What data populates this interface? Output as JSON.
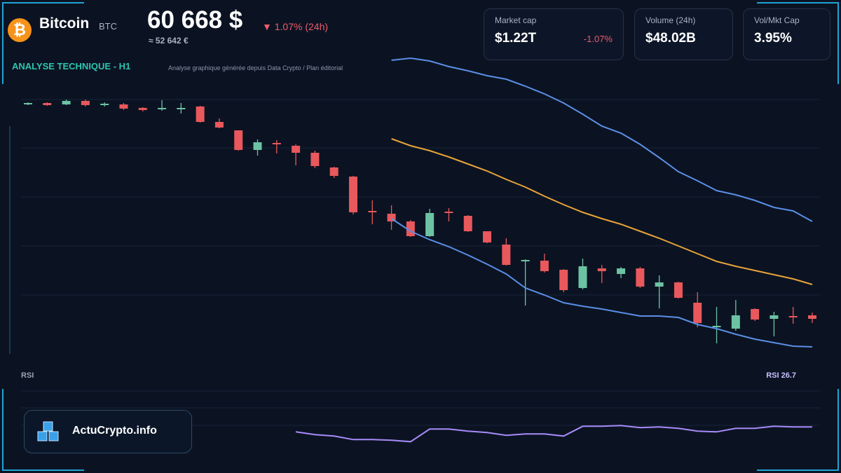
{
  "header": {
    "name": "Bitcoin",
    "symbol": "BTC",
    "price": "60 668 $",
    "change": "▼ 1.07% (24h)",
    "price_eur": "≈ 52 642 €"
  },
  "cards": [
    {
      "label": "Market cap",
      "value": "$1.22T",
      "change": "-1.07%"
    },
    {
      "label": "Volume (24h)",
      "value": "$48.02B"
    },
    {
      "label": "Vol/Mkt Cap",
      "value": "3.95%"
    }
  ],
  "brand": "ActuCrypto.info",
  "chart_data": [
    {
      "type": "candlestick",
      "title": "ANALYSE TECHNIQUE - H1",
      "subtitle": "Analyse graphique générée depuis Data Crypto / Plan éditorial",
      "categories": [
        null,
        null,
        null,
        null,
        null,
        null,
        null,
        null,
        null,
        null,
        null,
        null,
        null,
        null,
        null,
        null,
        null,
        null,
        null,
        null,
        null,
        null,
        null,
        null,
        null,
        null,
        null,
        null,
        null,
        null,
        null,
        null,
        null,
        null,
        null,
        null,
        null,
        null,
        null,
        null,
        null,
        null
      ],
      "open": [
        66740,
        66760,
        66720,
        66820,
        66720,
        66720,
        66620,
        66600,
        66600,
        66660,
        66220,
        65980,
        65420,
        65620,
        65540,
        65340,
        64920,
        64660,
        63680,
        63600,
        63380,
        62960,
        63660,
        63540,
        63100,
        62720,
        62260,
        62260,
        62000,
        61480,
        62040,
        61880,
        62040,
        61520,
        61640,
        61060,
        60380,
        60320,
        60880,
        60600,
        60680,
        60700
      ],
      "high": [
        66780,
        66780,
        66860,
        66860,
        66780,
        66760,
        66640,
        66840,
        66760,
        66680,
        66320,
        65980,
        65720,
        65700,
        65580,
        65400,
        64940,
        64680,
        63980,
        63840,
        63420,
        63740,
        63760,
        63560,
        63100,
        62900,
        62300,
        62460,
        62020,
        62320,
        62140,
        62080,
        62080,
        61840,
        61660,
        61360,
        60940,
        61140,
        60900,
        60800,
        60940,
        60780
      ],
      "low": [
        66700,
        66680,
        66700,
        66660,
        66660,
        66560,
        66520,
        66540,
        66460,
        66200,
        66040,
        65400,
        65260,
        65320,
        64980,
        64900,
        64620,
        63580,
        63300,
        63140,
        62940,
        62940,
        63380,
        63080,
        62760,
        62120,
        60980,
        61920,
        61360,
        61440,
        61620,
        61760,
        61480,
        60900,
        61180,
        60360,
        59900,
        60260,
        60540,
        60100,
        60460,
        60480
      ],
      "close": [
        66760,
        66700,
        66820,
        66700,
        66740,
        66600,
        66560,
        66620,
        66620,
        66220,
        66060,
        65420,
        65640,
        65600,
        65340,
        64960,
        64680,
        63640,
        63640,
        63380,
        62960,
        63620,
        63620,
        63100,
        62780,
        62140,
        62280,
        61960,
        61420,
        62100,
        61960,
        62040,
        61520,
        61640,
        61200,
        60480,
        60400,
        60700,
        60580,
        60700,
        60660,
        60600
      ],
      "up_color": "#6cc3a3",
      "down_color": "#e8585c",
      "series": [
        {
          "color": "#5b8ee6",
          "values": [
            null,
            null,
            null,
            null,
            null,
            null,
            null,
            null,
            null,
            null,
            null,
            null,
            null,
            null,
            null,
            null,
            null,
            null,
            null,
            67980,
            68040,
            67960,
            67800,
            67680,
            67540,
            67440,
            67240,
            67020,
            66760,
            66440,
            66100,
            65900,
            65580,
            65200,
            64800,
            64540,
            64260,
            64140,
            63980,
            63780,
            63680,
            63380
          ]
        },
        {
          "color": "#e8a33a",
          "values": [
            null,
            null,
            null,
            null,
            null,
            null,
            null,
            null,
            null,
            null,
            null,
            null,
            null,
            null,
            null,
            null,
            null,
            null,
            null,
            65740,
            65540,
            65400,
            65220,
            65020,
            64820,
            64580,
            64360,
            64100,
            63860,
            63640,
            63460,
            63300,
            63100,
            62900,
            62680,
            62460,
            62240,
            62100,
            61980,
            61860,
            61740,
            61580
          ]
        },
        {
          "color": "#5b8ee6",
          "values": [
            null,
            null,
            null,
            null,
            null,
            null,
            null,
            null,
            null,
            null,
            null,
            null,
            null,
            null,
            null,
            null,
            null,
            null,
            null,
            63460,
            63100,
            62860,
            62660,
            62420,
            62160,
            61880,
            61480,
            61280,
            61060,
            60960,
            60880,
            60780,
            60680,
            60680,
            60640,
            60440,
            60320,
            60160,
            60020,
            59920,
            59820,
            59800
          ]
        }
      ],
      "ylim": [
        59700,
        68100
      ]
    },
    {
      "type": "line",
      "title": "RSI",
      "annotation": "RSI 26.7",
      "categories": [
        null,
        null,
        null,
        null,
        null,
        null,
        null,
        null,
        null,
        null,
        null,
        null,
        null,
        null,
        null,
        null,
        null,
        null,
        null,
        null,
        null,
        null,
        null,
        null,
        null,
        null,
        null,
        null,
        null,
        null,
        null,
        null,
        null,
        null,
        null,
        null,
        null,
        null,
        null,
        null,
        null,
        null
      ],
      "series": [
        {
          "color": "#a78bfa",
          "values": [
            null,
            null,
            null,
            null,
            null,
            null,
            null,
            null,
            null,
            null,
            null,
            null,
            null,
            null,
            23.9,
            22.3,
            21.5,
            19.5,
            19.5,
            19.1,
            18.3,
            25.5,
            25.5,
            24.3,
            23.5,
            21.9,
            22.7,
            22.7,
            21.5,
            27.1,
            27.1,
            27.5,
            26.3,
            26.7,
            25.9,
            24.3,
            23.9,
            25.9,
            25.9,
            27.1,
            26.7,
            26.7
          ]
        }
      ],
      "ylim": [
        10,
        40
      ]
    }
  ]
}
